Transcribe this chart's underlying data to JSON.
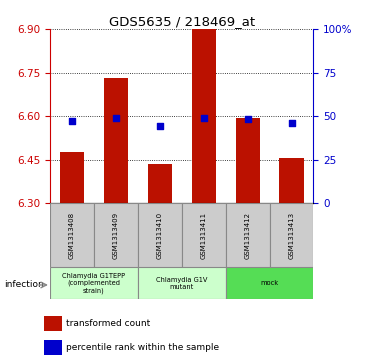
{
  "title": "GDS5635 / 218469_at",
  "samples": [
    "GSM1313408",
    "GSM1313409",
    "GSM1313410",
    "GSM1313411",
    "GSM1313412",
    "GSM1313413"
  ],
  "bar_values": [
    6.475,
    6.73,
    6.435,
    6.9,
    6.595,
    6.455
  ],
  "percentile_values": [
    6.585,
    6.595,
    6.565,
    6.595,
    6.59,
    6.575
  ],
  "bar_bottom": 6.3,
  "ylim": [
    6.3,
    6.9
  ],
  "yticks": [
    6.3,
    6.45,
    6.6,
    6.75,
    6.9
  ],
  "right_ytick_labels": [
    "0",
    "25",
    "50",
    "75",
    "100%"
  ],
  "right_ytick_pos": [
    6.3,
    6.45,
    6.6,
    6.75,
    6.9
  ],
  "bar_color": "#bb1100",
  "percentile_color": "#0000cc",
  "bar_width": 0.55,
  "group_defs": [
    {
      "start": 0,
      "end": 1,
      "label": "Chlamydia G1TEPP\n(complemented\nstrain)",
      "color": "#ccffcc"
    },
    {
      "start": 2,
      "end": 3,
      "label": "Chlamydia G1V\nmutant",
      "color": "#ccffcc"
    },
    {
      "start": 4,
      "end": 5,
      "label": "mock",
      "color": "#55dd55"
    }
  ],
  "infection_label": "infection",
  "legend_items": [
    {
      "label": "transformed count",
      "color": "#bb1100"
    },
    {
      "label": "percentile rank within the sample",
      "color": "#0000cc"
    }
  ],
  "left_axis_color": "#cc0000",
  "right_axis_color": "#0000cc",
  "sample_box_color": "#cccccc",
  "sample_box_edge": "#888888"
}
